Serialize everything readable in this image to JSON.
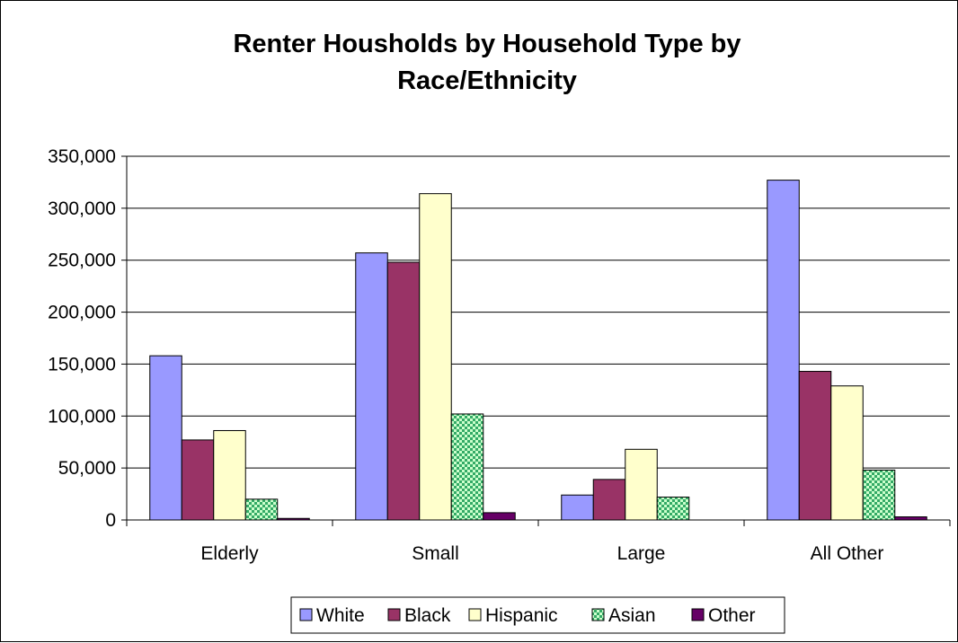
{
  "chart_data": {
    "type": "bar",
    "title": [
      "Renter Housholds by Household Type by",
      "Race/Ethnicity"
    ],
    "xlabel": "",
    "ylabel": "",
    "categories": [
      "Elderly",
      "Small",
      "Large",
      "All Other"
    ],
    "ylim": [
      0,
      350000
    ],
    "yticks": [
      0,
      50000,
      100000,
      150000,
      200000,
      250000,
      300000,
      350000
    ],
    "ytick_labels": [
      "0",
      "50,000",
      "100,000",
      "150,000",
      "200,000",
      "250,000",
      "300,000",
      "350,000"
    ],
    "grid": "horizontal",
    "legend_position": "bottom",
    "series": [
      {
        "name": "White",
        "color": "#9999ff",
        "pattern": "solid",
        "values": [
          158000,
          257000,
          24000,
          327000
        ]
      },
      {
        "name": "Black",
        "color": "#993366",
        "pattern": "solid",
        "values": [
          77000,
          248000,
          39000,
          143000
        ]
      },
      {
        "name": "Hispanic",
        "color": "#ffffcc",
        "pattern": "solid",
        "values": [
          86000,
          314000,
          68000,
          129000
        ]
      },
      {
        "name": "Asian",
        "color": "#33cc66",
        "pattern": "checker",
        "values": [
          20000,
          102000,
          22000,
          48000
        ]
      },
      {
        "name": "Other",
        "color": "#660066",
        "pattern": "solid",
        "values": [
          1500,
          7000,
          0,
          3000
        ]
      }
    ]
  }
}
